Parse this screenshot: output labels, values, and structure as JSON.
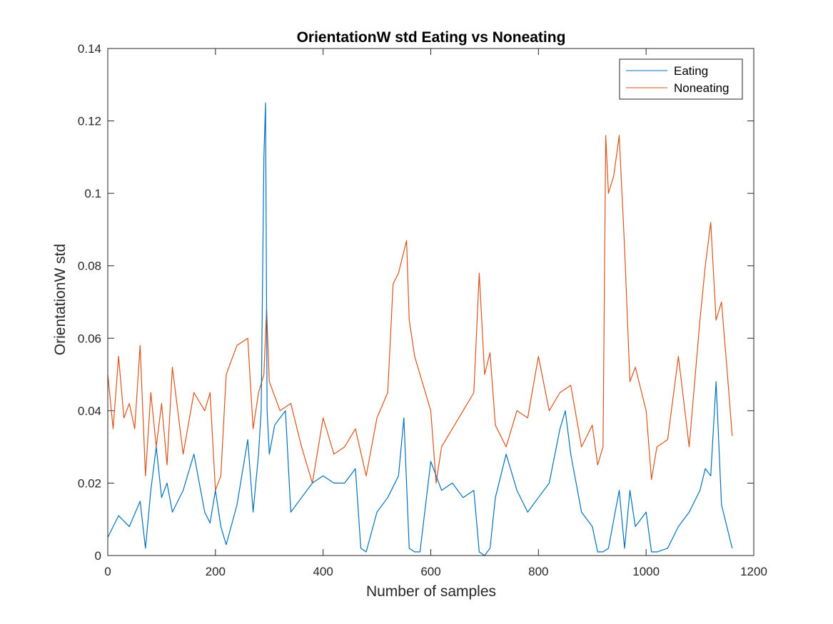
{
  "chart_data": {
    "type": "line",
    "title": "OrientationW std Eating vs Noneating",
    "xlabel": "Number of samples",
    "ylabel": "OrientationW std",
    "xlim": [
      0,
      1200
    ],
    "ylim": [
      0,
      0.14
    ],
    "xticks": [
      0,
      200,
      400,
      600,
      800,
      1000,
      1200
    ],
    "xtick_labels": [
      "0",
      "200",
      "400",
      "600",
      "800",
      "1000",
      "1200"
    ],
    "yticks": [
      0,
      0.02,
      0.04,
      0.06,
      0.08,
      0.1,
      0.12,
      0.14
    ],
    "ytick_labels": [
      "0",
      "0.02",
      "0.04",
      "0.06",
      "0.08",
      "0.1",
      "0.12",
      "0.14"
    ],
    "grid": false,
    "legend_position": "top-right",
    "series": [
      {
        "name": "Eating",
        "color": "#0072BD",
        "x": [
          0,
          20,
          40,
          60,
          70,
          80,
          90,
          100,
          110,
          120,
          140,
          160,
          180,
          190,
          200,
          210,
          220,
          240,
          260,
          270,
          280,
          285,
          290,
          293,
          296,
          300,
          310,
          320,
          330,
          340,
          360,
          380,
          400,
          420,
          440,
          460,
          470,
          480,
          500,
          520,
          540,
          550,
          560,
          570,
          580,
          600,
          620,
          640,
          660,
          680,
          690,
          700,
          710,
          720,
          740,
          760,
          780,
          800,
          820,
          840,
          850,
          860,
          880,
          900,
          910,
          920,
          930,
          950,
          960,
          970,
          980,
          1000,
          1010,
          1020,
          1040,
          1060,
          1080,
          1100,
          1110,
          1120,
          1130,
          1140,
          1150,
          1160
        ],
        "y": [
          0.005,
          0.011,
          0.008,
          0.015,
          0.002,
          0.018,
          0.03,
          0.016,
          0.02,
          0.012,
          0.018,
          0.028,
          0.012,
          0.009,
          0.018,
          0.008,
          0.003,
          0.014,
          0.032,
          0.012,
          0.028,
          0.04,
          0.11,
          0.125,
          0.04,
          0.028,
          0.036,
          0.038,
          0.04,
          0.012,
          0.016,
          0.02,
          0.022,
          0.02,
          0.02,
          0.024,
          0.002,
          0.001,
          0.012,
          0.016,
          0.022,
          0.038,
          0.002,
          0.001,
          0.001,
          0.026,
          0.018,
          0.02,
          0.016,
          0.018,
          0.001,
          0.0,
          0.002,
          0.016,
          0.028,
          0.018,
          0.012,
          0.016,
          0.02,
          0.035,
          0.04,
          0.028,
          0.012,
          0.008,
          0.001,
          0.001,
          0.002,
          0.018,
          0.002,
          0.018,
          0.008,
          0.012,
          0.001,
          0.001,
          0.002,
          0.008,
          0.012,
          0.018,
          0.024,
          0.022,
          0.048,
          0.014,
          0.008,
          0.002
        ]
      },
      {
        "name": "Noneating",
        "color": "#D95319",
        "x": [
          0,
          10,
          20,
          30,
          40,
          50,
          60,
          70,
          80,
          90,
          100,
          110,
          120,
          140,
          160,
          180,
          190,
          200,
          210,
          220,
          240,
          260,
          270,
          280,
          290,
          295,
          300,
          320,
          340,
          360,
          380,
          400,
          420,
          440,
          460,
          480,
          500,
          520,
          530,
          540,
          555,
          560,
          570,
          580,
          600,
          610,
          620,
          640,
          660,
          680,
          690,
          700,
          710,
          720,
          740,
          760,
          780,
          800,
          820,
          840,
          860,
          880,
          900,
          910,
          920,
          925,
          930,
          940,
          950,
          960,
          970,
          980,
          1000,
          1010,
          1020,
          1040,
          1060,
          1080,
          1100,
          1110,
          1120,
          1130,
          1140,
          1150,
          1160
        ],
        "y": [
          0.05,
          0.035,
          0.055,
          0.038,
          0.042,
          0.035,
          0.058,
          0.022,
          0.045,
          0.03,
          0.042,
          0.025,
          0.052,
          0.028,
          0.045,
          0.04,
          0.045,
          0.018,
          0.022,
          0.05,
          0.058,
          0.06,
          0.035,
          0.045,
          0.05,
          0.068,
          0.048,
          0.04,
          0.042,
          0.03,
          0.02,
          0.038,
          0.028,
          0.03,
          0.035,
          0.022,
          0.038,
          0.045,
          0.075,
          0.078,
          0.087,
          0.065,
          0.055,
          0.05,
          0.04,
          0.02,
          0.03,
          0.035,
          0.04,
          0.045,
          0.078,
          0.05,
          0.056,
          0.036,
          0.03,
          0.04,
          0.038,
          0.055,
          0.04,
          0.045,
          0.047,
          0.03,
          0.036,
          0.025,
          0.03,
          0.116,
          0.1,
          0.105,
          0.116,
          0.085,
          0.048,
          0.052,
          0.04,
          0.021,
          0.03,
          0.032,
          0.055,
          0.03,
          0.065,
          0.08,
          0.092,
          0.065,
          0.07,
          0.052,
          0.033
        ]
      }
    ]
  }
}
